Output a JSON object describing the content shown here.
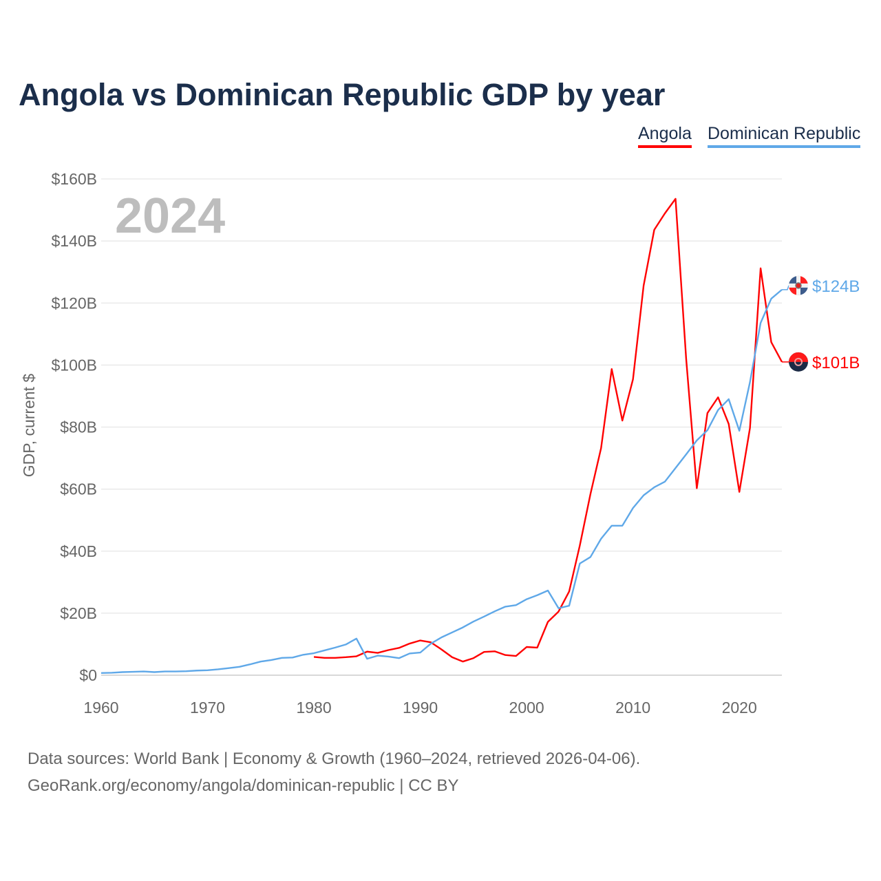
{
  "chart_data": {
    "type": "line",
    "title": "Angola vs Dominican Republic GDP by year",
    "ylabel": "GDP, current $",
    "xlabel": "",
    "year_watermark": "2024",
    "xlim": [
      1960,
      2024
    ],
    "ylim": [
      0,
      160
    ],
    "x_ticks": [
      1960,
      1970,
      1980,
      1990,
      2000,
      2010,
      2020
    ],
    "x_tick_labels": [
      "1960",
      "1970",
      "1980",
      "1990",
      "2000",
      "2010",
      "2020"
    ],
    "y_ticks": [
      0,
      20,
      40,
      60,
      80,
      100,
      120,
      140,
      160
    ],
    "y_tick_labels": [
      "$0",
      "$20B",
      "$40B",
      "$60B",
      "$80B",
      "$100B",
      "$120B",
      "$140B",
      "$160B"
    ],
    "grid": true,
    "legend_position": "top-right",
    "series": [
      {
        "name": "Angola",
        "color": "#ff0000",
        "start_year": 1980,
        "values": [
          5.9,
          5.6,
          5.6,
          5.8,
          6.1,
          7.6,
          7.2,
          8.1,
          8.8,
          10.2,
          11.2,
          10.6,
          8.3,
          5.8,
          4.4,
          5.5,
          7.5,
          7.7,
          6.5,
          6.2,
          9.1,
          8.9,
          17.2,
          20.5,
          27.0,
          41.8,
          58.4,
          73.2,
          98.7,
          82.1,
          95.4,
          125.6,
          143.6,
          148.9,
          153.6,
          102.0,
          60.3,
          84.5,
          89.6,
          81.0,
          59.1,
          79.7,
          131.2,
          107.4,
          101.0
        ],
        "end_label": "$101B",
        "flag_icon": "angola-flag-icon"
      },
      {
        "name": "Dominican Republic",
        "color": "#5fa8e8",
        "start_year": 1960,
        "values": [
          0.7,
          0.8,
          1.0,
          1.1,
          1.2,
          1.0,
          1.2,
          1.2,
          1.3,
          1.5,
          1.6,
          1.9,
          2.3,
          2.7,
          3.5,
          4.4,
          4.9,
          5.6,
          5.7,
          6.6,
          7.1,
          8.0,
          8.9,
          9.9,
          11.8,
          5.3,
          6.3,
          6.0,
          5.5,
          7.0,
          7.3,
          10.2,
          12.2,
          13.8,
          15.4,
          17.3,
          18.9,
          20.6,
          22.1,
          22.6,
          24.5,
          25.8,
          27.3,
          21.6,
          22.4,
          36.0,
          38.1,
          44.0,
          48.2,
          48.2,
          53.9,
          58.0,
          60.6,
          62.4,
          66.8,
          71.2,
          75.7,
          79.0,
          85.5,
          89.0,
          78.8,
          94.5,
          113.6,
          121.4,
          124.3
        ],
        "end_label": "$124B",
        "flag_icon": "dominican-republic-flag-icon"
      }
    ]
  },
  "footer": {
    "line1": "Data sources: World Bank | Economy & Growth (1960–2024, retrieved 2026-04-06).",
    "line2": "GeoRank.org/economy/angola/dominican-republic | CC BY"
  }
}
